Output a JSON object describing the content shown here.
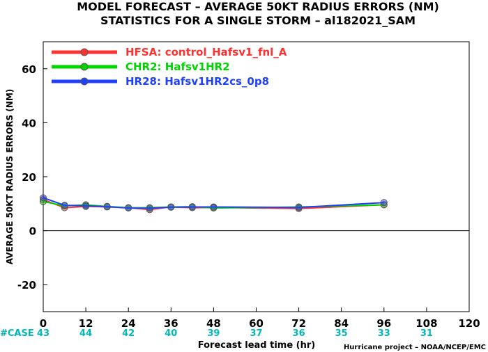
{
  "chart_data": {
    "type": "line",
    "title": "MODEL FORECAST – AVERAGE 50KT RADIUS ERRORS (NM)",
    "subtitle": "STATISTICS FOR A SINGLE STORM – al182021_SAM",
    "xlabel": "Forecast lead time (hr)",
    "ylabel": "AVERAGE 50KT RADIUS ERRORS (NM)",
    "credit": "Hurricane project – NOAA/NCEP/EMC",
    "xlim": [
      0,
      120
    ],
    "ylim": [
      -30,
      70
    ],
    "x_ticks": [
      0,
      12,
      24,
      36,
      48,
      60,
      72,
      84,
      96,
      108,
      120
    ],
    "y_ticks": [
      -20,
      0,
      20,
      40,
      60
    ],
    "zero_line": true,
    "legend_position": "top-left",
    "case_label": "#CASE",
    "case_counts": [
      {
        "x": 0,
        "n": "43"
      },
      {
        "x": 12,
        "n": "44"
      },
      {
        "x": 24,
        "n": "42"
      },
      {
        "x": 36,
        "n": "40"
      },
      {
        "x": 48,
        "n": "39"
      },
      {
        "x": 60,
        "n": "37"
      },
      {
        "x": 72,
        "n": "36"
      },
      {
        "x": 84,
        "n": "35"
      },
      {
        "x": 96,
        "n": "33"
      },
      {
        "x": 108,
        "n": "31"
      }
    ],
    "x": [
      0,
      6,
      12,
      18,
      24,
      30,
      36,
      42,
      48,
      72,
      96
    ],
    "series": [
      {
        "name": "HFSA: control_Hafsv1_fnl_A",
        "color": "#ff3030",
        "values": [
          11.5,
          8.5,
          9.0,
          8.8,
          8.5,
          7.8,
          8.8,
          8.5,
          8.6,
          8.2,
          9.6
        ]
      },
      {
        "name": "CHR2: Hafsv1HR2",
        "color": "#00d400",
        "values": [
          10.8,
          9.2,
          9.6,
          9.0,
          8.5,
          8.5,
          8.8,
          8.9,
          8.4,
          8.8,
          9.6
        ]
      },
      {
        "name": "HR28: Hafsv1HR2cs_0p8",
        "color": "#2040ff",
        "values": [
          12.2,
          9.4,
          9.2,
          8.9,
          8.4,
          8.3,
          8.7,
          8.8,
          8.8,
          8.6,
          10.4
        ]
      }
    ]
  }
}
